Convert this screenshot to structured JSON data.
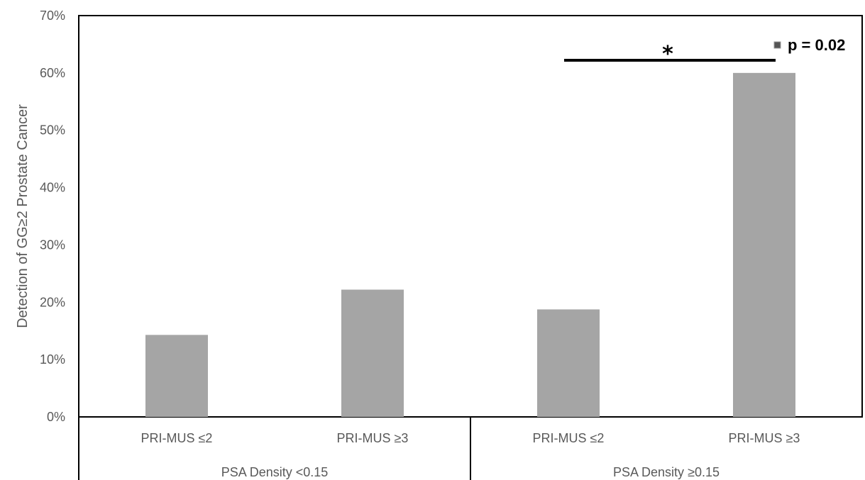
{
  "chart_data": {
    "type": "bar",
    "categories": [
      "PRI-MUS ≤2",
      "PRI-MUS ≥3",
      "PRI-MUS ≤2",
      "PRI-MUS ≥3"
    ],
    "groups": [
      {
        "label": "PSA Density <0.15",
        "category_indices": [
          0,
          1
        ]
      },
      {
        "label": "PSA Density ≥0.15",
        "category_indices": [
          2,
          3
        ]
      }
    ],
    "values": [
      14.3,
      22.2,
      18.75,
      60.0
    ],
    "value_format": "percent",
    "ylabel": "Detection of  GG≥2 Prostate Cancer",
    "xlabel": "",
    "ylim": [
      0,
      70
    ],
    "yticks": [
      0,
      10,
      20,
      30,
      40,
      50,
      60,
      70
    ],
    "ytick_labels": [
      "0%",
      "10%",
      "20%",
      "30%",
      "40%",
      "50%",
      "60%",
      "70%"
    ],
    "grid": false,
    "bar_color": "#a5a5a5",
    "annotations": {
      "significance_star": "*",
      "significance_text": "p = 0.02",
      "bracket_between_categories": [
        2,
        3
      ]
    }
  }
}
